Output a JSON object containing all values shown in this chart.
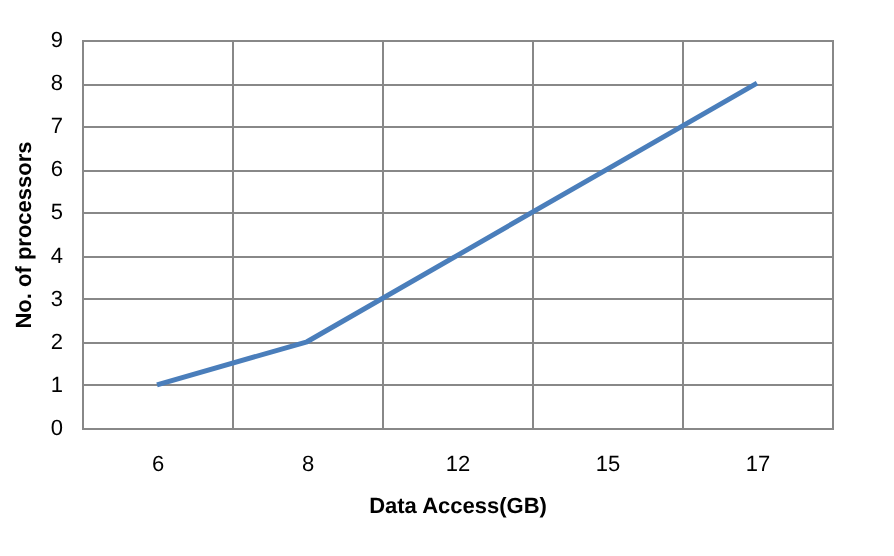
{
  "chart_data": {
    "type": "line",
    "xlabel": "Data Access(GB)",
    "ylabel": "No. of processors",
    "categories": [
      "6",
      "8",
      "12",
      "15",
      "17"
    ],
    "series": [
      {
        "color": "#4a7ebb",
        "values": [
          1,
          2,
          4,
          6,
          8
        ]
      }
    ],
    "ylim": [
      0,
      9
    ],
    "yticks": [
      0,
      1,
      2,
      3,
      4,
      5,
      6,
      7,
      8,
      9
    ],
    "grid": true,
    "marker": "none",
    "line_style": "solid"
  }
}
